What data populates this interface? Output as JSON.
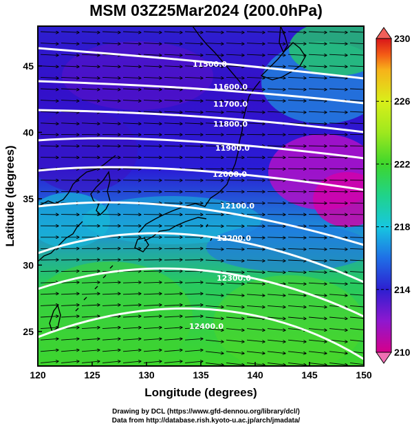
{
  "title": "MSM 03Z25Mar2024 (200.0hPa)",
  "map": {
    "xlabel": "Longitude (degrees)",
    "ylabel": "Latitude  (degrees)",
    "lon_range": [
      120,
      150
    ],
    "lat_range": [
      22.4,
      48
    ],
    "lon_ticks": [
      "120",
      "125",
      "130",
      "135",
      "140",
      "145",
      "150"
    ],
    "lat_ticks": [
      "25",
      "30",
      "35",
      "40",
      "45"
    ],
    "contour_labels": [
      "11500.0",
      "11600.0",
      "11700.0",
      "11800.0",
      "11900.0",
      "12000.0",
      "12100.0",
      "12200.0",
      "12300.0",
      "12400.0"
    ],
    "field": "temperature shading",
    "wind": "vector arrows"
  },
  "colorbar": {
    "labels": [
      "230",
      "226",
      "222",
      "218",
      "214",
      "210"
    ],
    "min": 210,
    "max": 230,
    "colors": [
      "#d6008a",
      "#8e18cf",
      "#2d1fd0",
      "#1f6fe6",
      "#17c7e0",
      "#20d38a",
      "#3ed62c",
      "#9ee81e",
      "#d9ef1a",
      "#f7b21a",
      "#f35a16",
      "#d8161a"
    ]
  },
  "footer": {
    "line1": "Drawing by DCL (https://www.gfd-dennou.org/library/dcl/)",
    "line2": "Data from http://database.rish.kyoto-u.ac.jp/arch/jmadata/"
  }
}
